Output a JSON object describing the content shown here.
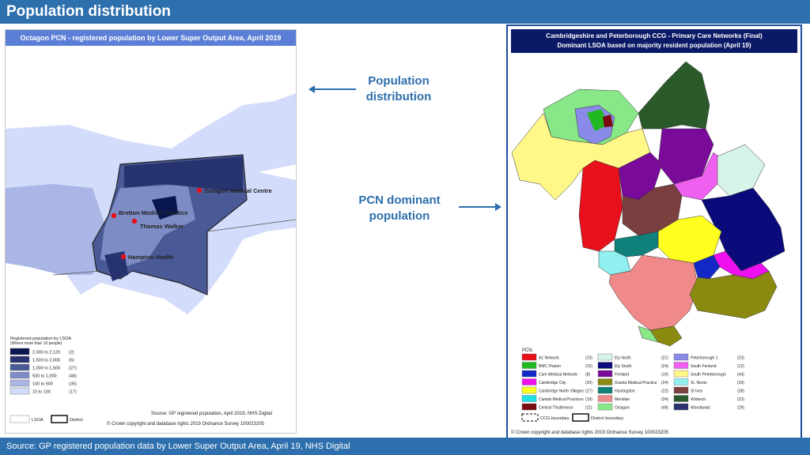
{
  "header": {
    "title": "Population distribution"
  },
  "footer": {
    "source": "Source: GP registered population data by Lower Super Output Area, April 19, NHS Digital"
  },
  "left_map": {
    "title": "Octagon PCN - registered population by Lower Super Output Area, April 2019",
    "practices": [
      "Octagon Medical Centre",
      "Bretton Medical Practice",
      "Thomas Walker",
      "Hampton Health"
    ],
    "legend_title": "Registered population by LSOA",
    "legend_subtitle": "(Where more than 10 people)",
    "legend_rows": [
      {
        "range": "2,000  to  2,120",
        "count": "(2)",
        "color": "#0a1650"
      },
      {
        "range": "1,500  to  2,000",
        "count": "(6)",
        "color": "#27336f"
      },
      {
        "range": "1,000  to  1,500",
        "count": "(27)",
        "color": "#4a5a96"
      },
      {
        "range": "500  to  1,000",
        "count": "(48)",
        "color": "#7d8cc4"
      },
      {
        "range": "100  to  500",
        "count": "(35)",
        "color": "#a9b6e6"
      },
      {
        "range": "10  to  100",
        "count": "(17)",
        "color": "#d3dcfa"
      }
    ],
    "lsoa_label": "LSOA",
    "district_label": "District",
    "source": "Source: GP registered population, April 2019, NHS Digital",
    "copyright": "© Crown copyright and database rights 2019 Ordnance Survey 100023205"
  },
  "middle": {
    "label_top": "Population distribution",
    "label_top_l1": "Population",
    "label_top_l2": "distribution",
    "label_bottom_l1": "PCN dominant",
    "label_bottom_l2": "population"
  },
  "right_map": {
    "title_l1": "Cambridgeshire and Peterborough CCG - Primary Care Networks (Final)",
    "title_l2": "Dominant LSOA based on majority resident population (April 19)",
    "legend_heading": "PCN",
    "legend": [
      {
        "name": "A1 Network",
        "count": "(19)",
        "color": "#e8101a"
      },
      {
        "name": "BMC Paston",
        "count": "(15)",
        "color": "#22b822"
      },
      {
        "name": "Cam Medical Network",
        "count": "(8)",
        "color": "#1428c8"
      },
      {
        "name": "Cambridge City",
        "count": "(20)",
        "color": "#ee10ee"
      },
      {
        "name": "Cambridge North Villages",
        "count": "(27)",
        "color": "#ffff20"
      },
      {
        "name": "Cantab Medical Practices",
        "count": "(19)",
        "color": "#20e0e8"
      },
      {
        "name": "Central Thistlemoor",
        "count": "(11)",
        "color": "#7a0a10"
      },
      {
        "name": "Ely North",
        "count": "(21)",
        "color": "#d6f4e8"
      },
      {
        "name": "Ely South",
        "count": "(24)",
        "color": "#0a0a7a"
      },
      {
        "name": "Fenland",
        "count": "(19)",
        "color": "#7a0a9a"
      },
      {
        "name": "Granta Medical Practice",
        "count": "(24)",
        "color": "#8a8a10"
      },
      {
        "name": "Huntingdon",
        "count": "(22)",
        "color": "#10807a"
      },
      {
        "name": "Meridian",
        "count": "(34)",
        "color": "#f08a8a"
      },
      {
        "name": "Octagon",
        "count": "(49)",
        "color": "#88e888"
      },
      {
        "name": "Peterborough 1",
        "count": "(23)",
        "color": "#8a8ae8"
      },
      {
        "name": "South Fenland",
        "count": "(12)",
        "color": "#f060f0"
      },
      {
        "name": "South Peterborough",
        "count": "(44)",
        "color": "#fff888"
      },
      {
        "name": "St. Neots",
        "count": "(29)",
        "color": "#90f0f0"
      },
      {
        "name": "St Ives",
        "count": "(28)",
        "color": "#7a4040"
      },
      {
        "name": "Wisbech",
        "count": "(23)",
        "color": "#2a5a2a"
      },
      {
        "name": "Woodlands",
        "count": "(29)",
        "color": "#2a3070"
      }
    ],
    "ccg_boundary": "CCG boundary",
    "district_boundary": "District boundary",
    "copyright": "© Crown copyright and database rights 2019 Ordnance Survey 100023205"
  }
}
